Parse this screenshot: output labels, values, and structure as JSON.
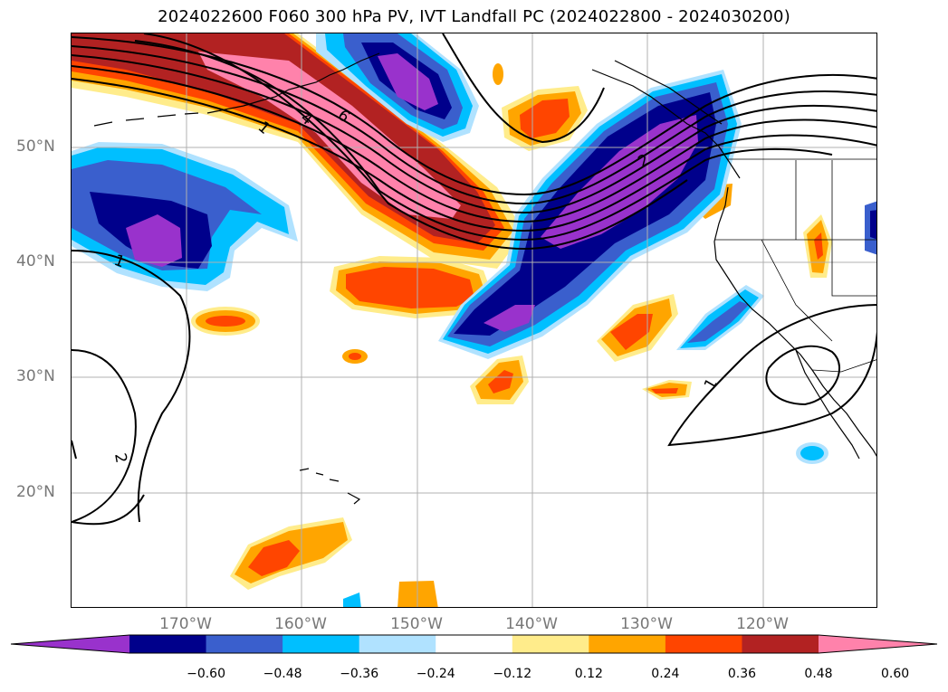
{
  "title": "2024022600 F060 300 hPa PV, IVT Landfall PC (2024022800 - 2024030200)",
  "lat_labels": [
    "50°N",
    "40°N",
    "30°N",
    "20°N"
  ],
  "lon_labels": [
    "170°W",
    "160°W",
    "150°W",
    "140°W",
    "130°W",
    "120°W"
  ],
  "contour_labels": [
    "1",
    "4",
    "6",
    "2",
    "1",
    "2",
    "1"
  ],
  "colorbar": {
    "ticks": [
      "−0.60",
      "−0.48",
      "−0.36",
      "−0.24",
      "−0.12",
      "0.12",
      "0.24",
      "0.36",
      "0.48",
      "0.60"
    ],
    "colors": [
      "#9932cc",
      "#00008b",
      "#3a5fcd",
      "#00bfff",
      "#b0e2ff",
      "#ffffff",
      "#ffec8b",
      "#ffa500",
      "#ff4500",
      "#b22222",
      "#ff82ab"
    ],
    "extend": "both"
  },
  "fill_colors": {
    "purple": "#9932cc",
    "navy": "#00008b",
    "royal": "#3a5fcd",
    "sky": "#00bfff",
    "pale_blue": "#b0e2ff",
    "pale_yellow": "#ffec8b",
    "orange": "#ffa500",
    "red_orange": "#ff4500",
    "brick": "#b22222",
    "pink": "#ff82ab"
  }
}
